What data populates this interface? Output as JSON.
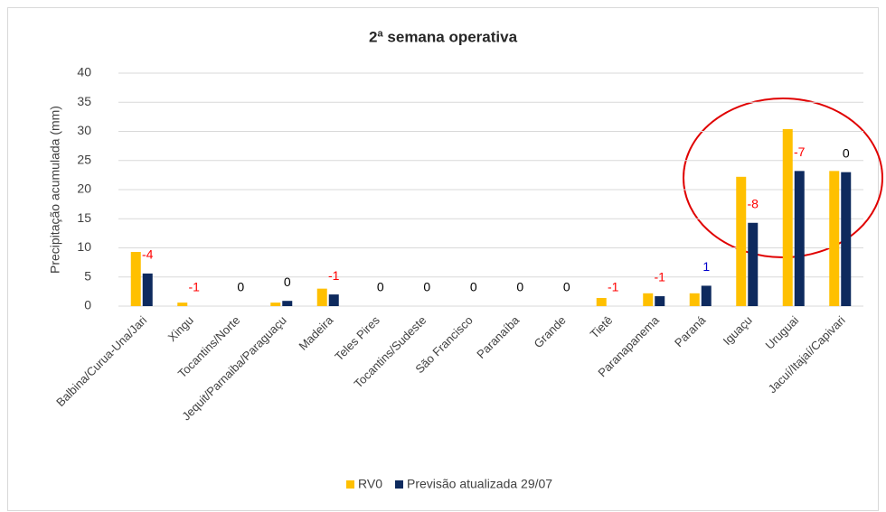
{
  "chart_data": {
    "type": "bar",
    "title": "2ª semana operativa",
    "y_label": "Precipitação acumulada (mm)",
    "categories": [
      "Balbina/Curua-Una/Jari",
      "Xingu",
      "Tocantins/Norte",
      "Jequit/Parnaiba/Paraguaçu",
      "Madeira",
      "Teles Pires",
      "Tocantins/Sudeste",
      "São Francisco",
      "Paranaíba",
      "Grande",
      "Tietê",
      "Paranapanema",
      "Paraná",
      "Iguaçu",
      "Uruguai",
      "Jacuí/Itajaí/Capivari"
    ],
    "series": [
      {
        "name": "RV0",
        "color": "#ffc000",
        "values": [
          9.3,
          0.6,
          0,
          0.6,
          3.0,
          0,
          0,
          0,
          0,
          0,
          1.4,
          2.2,
          2.2,
          22.2,
          30.4,
          23.2
        ]
      },
      {
        "name": "Previsão atualizada 29/07",
        "color": "#0e2a5e",
        "values": [
          5.6,
          0,
          0,
          0.9,
          2.0,
          0,
          0,
          0,
          0,
          0,
          0,
          1.7,
          3.5,
          14.3,
          23.2,
          23.0
        ]
      }
    ],
    "differences": [
      -4,
      -1,
      0,
      0,
      -1,
      0,
      0,
      0,
      0,
      0,
      -1,
      -1,
      1,
      -8,
      -7,
      0
    ],
    "difference_colors": [
      "#ff0000",
      "#ff0000",
      "#000000",
      "#000000",
      "#ff0000",
      "#000000",
      "#000000",
      "#000000",
      "#000000",
      "#000000",
      "#ff0000",
      "#ff0000",
      "#0000cc",
      "#ff0000",
      "#ff0000",
      "#000000"
    ],
    "ylim": [
      0,
      40
    ],
    "yticks": [
      0,
      5,
      10,
      15,
      20,
      25,
      30,
      35,
      40
    ],
    "grid": true,
    "legend": "bottom"
  }
}
